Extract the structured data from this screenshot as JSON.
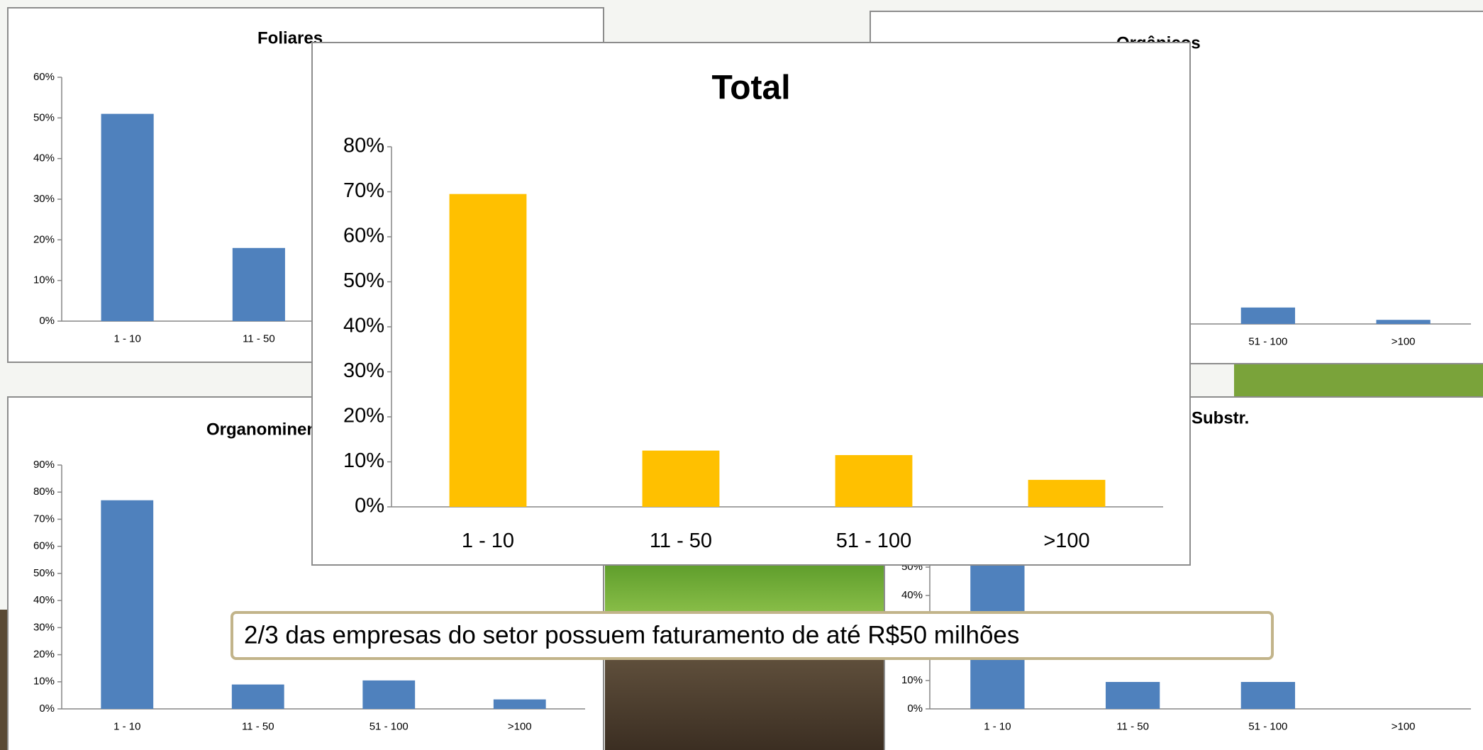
{
  "chart_data": [
    {
      "type": "bar",
      "title": "Foliares",
      "color": "#4f81bd",
      "categories": [
        "1 - 10",
        "11 - 50"
      ],
      "values": [
        51,
        18
      ],
      "ylim": [
        0,
        60
      ],
      "yticks": [
        {
          "value": 0,
          "label": "0%"
        },
        {
          "value": 10,
          "label": "10%"
        },
        {
          "value": 20,
          "label": "20%"
        },
        {
          "value": 30,
          "label": "30%"
        },
        {
          "value": 40,
          "label": "40%"
        },
        {
          "value": 50,
          "label": "50%"
        },
        {
          "value": 60,
          "label": "60%"
        }
      ]
    },
    {
      "type": "bar",
      "title": "Orgânicos",
      "color": "#4f81bd",
      "categories": [
        "51 - 100",
        ">100"
      ],
      "values": [
        4,
        1
      ],
      "ylim": [
        0,
        60
      ]
    },
    {
      "type": "bar",
      "title": "Organominerais",
      "color": "#4f81bd",
      "categories": [
        "1 - 10",
        "11 - 50",
        "51 - 100",
        ">100"
      ],
      "values": [
        77,
        9,
        10.5,
        3.5
      ],
      "ylim": [
        0,
        90
      ],
      "yticks": [
        {
          "value": 0,
          "label": "0%"
        },
        {
          "value": 10,
          "label": "10%"
        },
        {
          "value": 20,
          "label": "20%"
        },
        {
          "value": 30,
          "label": "30%"
        },
        {
          "value": 40,
          "label": "40%"
        },
        {
          "value": 50,
          "label": "50%"
        },
        {
          "value": 60,
          "label": "60%"
        },
        {
          "value": 70,
          "label": "70%"
        },
        {
          "value": 80,
          "label": "80%"
        },
        {
          "value": 90,
          "label": "90%"
        }
      ]
    },
    {
      "type": "bar",
      "title": "Substr.",
      "color": "#4f81bd",
      "categories": [
        "1 - 10",
        "11 - 50",
        "51 - 100",
        ">100"
      ],
      "values": [
        60,
        9.5,
        9.5,
        0
      ],
      "ylim": [
        0,
        90
      ],
      "yticks": [
        {
          "value": 0,
          "label": "0%"
        },
        {
          "value": 10,
          "label": "10%"
        },
        {
          "value": 40,
          "label": "40%"
        },
        {
          "value": 50,
          "label": "50%"
        }
      ]
    },
    {
      "type": "bar",
      "title": "Total",
      "color": "#ffc000",
      "categories": [
        "1 - 10",
        "11 - 50",
        "51 - 100",
        ">100"
      ],
      "values": [
        69.5,
        12.5,
        11.5,
        6
      ],
      "ylim": [
        0,
        80
      ],
      "yticks": [
        {
          "value": 0,
          "label": "0%"
        },
        {
          "value": 10,
          "label": "10%"
        },
        {
          "value": 20,
          "label": "20%"
        },
        {
          "value": 30,
          "label": "30%"
        },
        {
          "value": 40,
          "label": "40%"
        },
        {
          "value": 50,
          "label": "50%"
        },
        {
          "value": 60,
          "label": "60%"
        },
        {
          "value": 70,
          "label": "70%"
        },
        {
          "value": 80,
          "label": "80%"
        }
      ]
    }
  ],
  "annotation": {
    "text": "2/3 das empresas do setor possuem faturamento de até R$50 milhões"
  }
}
